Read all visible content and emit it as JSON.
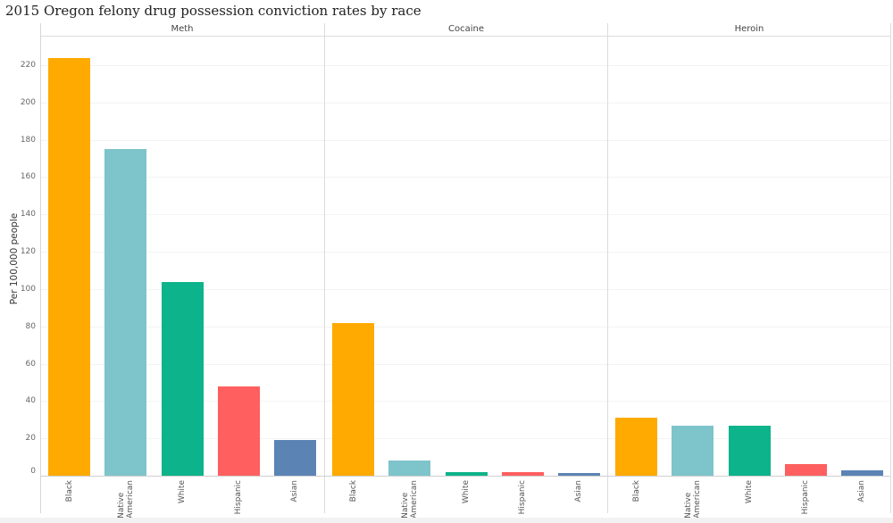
{
  "title": "2015 Oregon felony drug possession conviction rates by race",
  "y_axis_label": "Per 100,000 people",
  "y_ticks": [
    "0",
    "20",
    "40",
    "60",
    "80",
    "100",
    "120",
    "140",
    "160",
    "180",
    "200",
    "220"
  ],
  "panels": [
    "Meth",
    "Cocaine",
    "Heroin"
  ],
  "categories": [
    "Black",
    "Native American",
    "White",
    "Hispanic",
    "Asian"
  ],
  "colors": {
    "Black": "#FFAA00",
    "Native American": "#7DC4CB",
    "White": "#0DB38A",
    "Hispanic": "#FF5F5F",
    "Asian": "#5B84B5"
  },
  "chart_data": {
    "type": "bar",
    "title": "2015 Oregon felony drug possession conviction rates by race",
    "xlabel": "",
    "ylabel": "Per 100,000 people",
    "ylim": [
      0,
      230
    ],
    "grid": true,
    "facets": [
      "Meth",
      "Cocaine",
      "Heroin"
    ],
    "categories": [
      "Black",
      "Native American",
      "White",
      "Hispanic",
      "Asian"
    ],
    "series": [
      {
        "name": "Meth",
        "values": [
          224,
          175,
          104,
          48,
          19
        ]
      },
      {
        "name": "Cocaine",
        "values": [
          82,
          8,
          2,
          2,
          1.5
        ]
      },
      {
        "name": "Heroin",
        "values": [
          31,
          27,
          27,
          6,
          3
        ]
      }
    ]
  }
}
